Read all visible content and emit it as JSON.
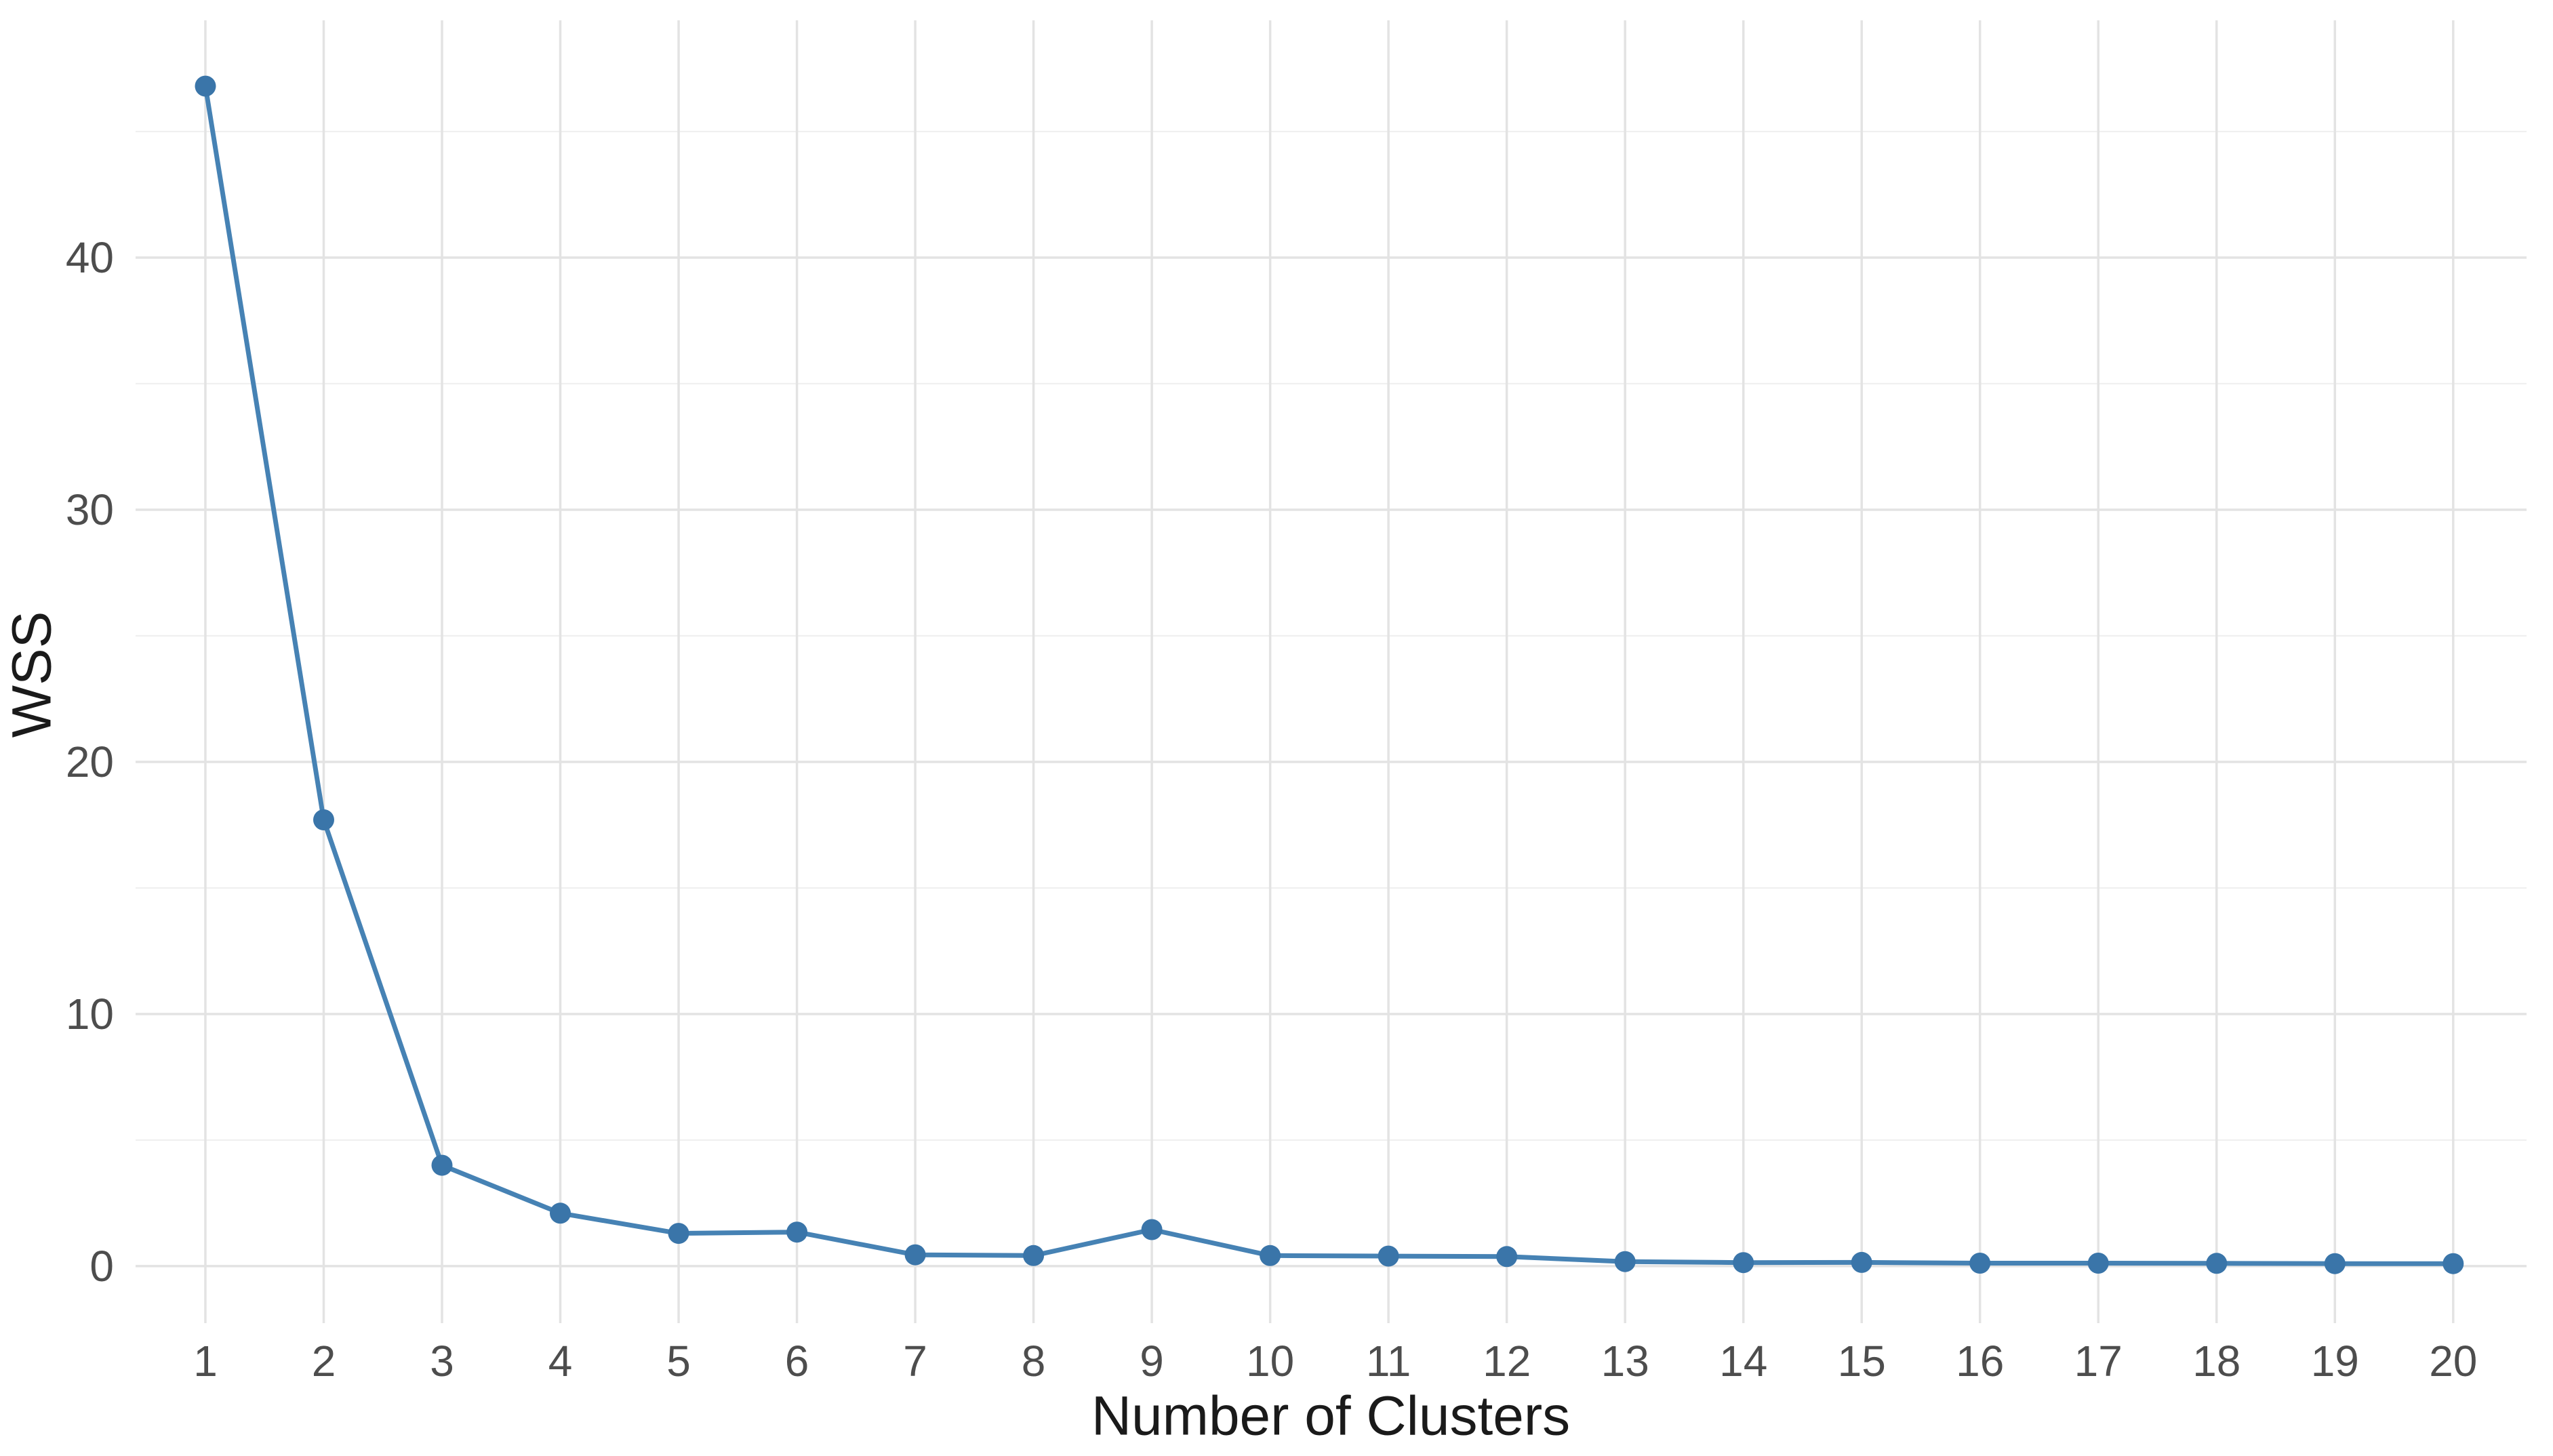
{
  "chart_data": {
    "type": "line",
    "title": "",
    "xlabel": "Number of Clusters",
    "ylabel": "WSS",
    "series_name": "WSS",
    "x": [
      1,
      2,
      3,
      4,
      5,
      6,
      7,
      8,
      9,
      10,
      11,
      12,
      13,
      14,
      15,
      16,
      17,
      18,
      19,
      20
    ],
    "y": [
      46.8,
      17.7,
      4.0,
      2.1,
      1.3,
      1.35,
      0.45,
      0.42,
      1.45,
      0.42,
      0.4,
      0.38,
      0.18,
      0.14,
      0.15,
      0.12,
      0.12,
      0.11,
      0.1,
      0.1
    ],
    "x_tick_labels": [
      "1",
      "2",
      "3",
      "4",
      "5",
      "6",
      "7",
      "8",
      "9",
      "10",
      "11",
      "12",
      "13",
      "14",
      "15",
      "16",
      "17",
      "18",
      "19",
      "20"
    ],
    "y_tick_labels": [
      "0",
      "10",
      "20",
      "30",
      "40"
    ],
    "y_tick_values": [
      0,
      10,
      20,
      30,
      40
    ],
    "y_minor_gridlines": [
      5,
      15,
      25,
      35,
      45
    ],
    "xlim": [
      0.41,
      20.62
    ],
    "ylim": [
      -2.26,
      49.41
    ],
    "grid": "on",
    "legend": "none",
    "colors": {
      "line": "#4682B4",
      "point": "#3A75A9",
      "grid_major": "#E3E3E3",
      "grid_minor": "#F0F0F0",
      "tick_label": "#4D4D4D",
      "axis_title": "#1A1A1A",
      "background": "#FFFFFF"
    }
  }
}
